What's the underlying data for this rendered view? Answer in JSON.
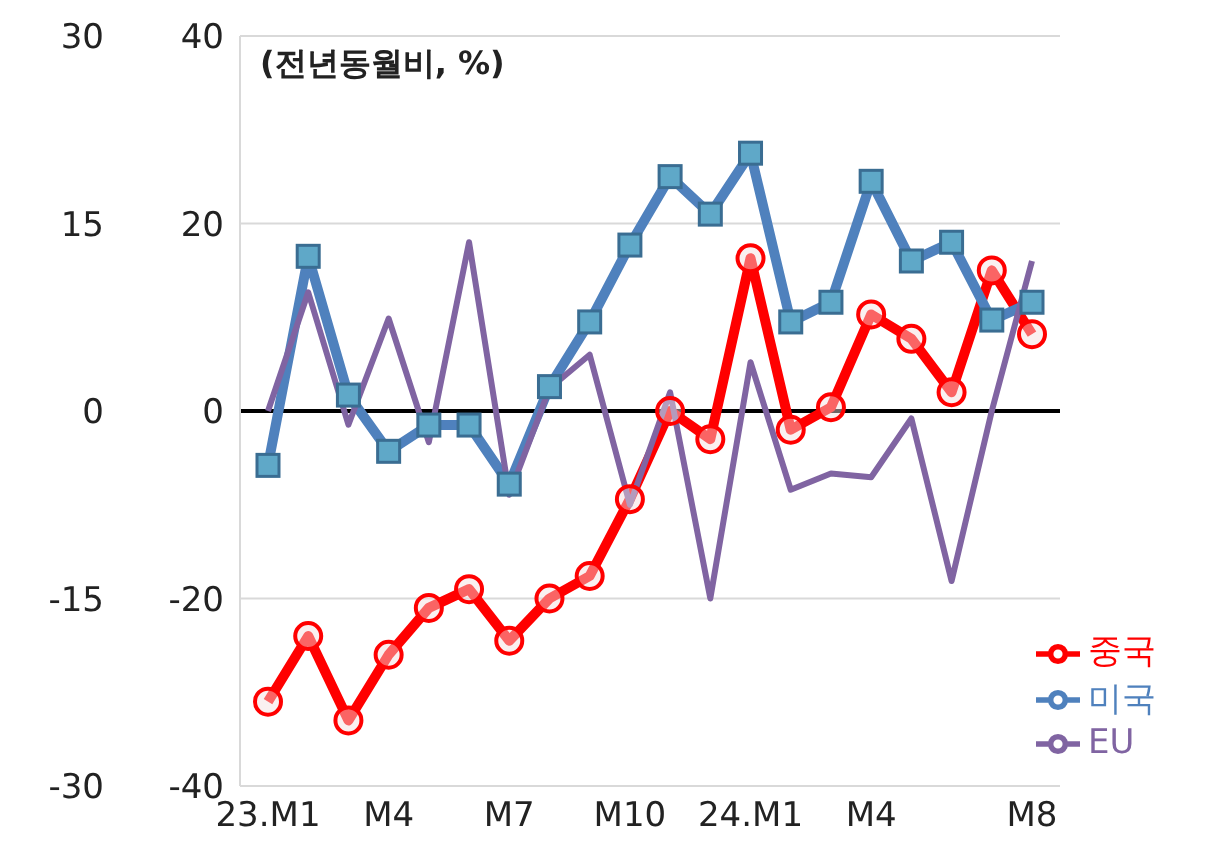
{
  "chart_data": {
    "type": "line",
    "annotations": [
      "(전년동월비, %)"
    ],
    "categories": [
      "23.M1",
      null,
      null,
      "M4",
      null,
      null,
      "M7",
      null,
      null,
      "M10",
      null,
      null,
      "24.M1",
      null,
      null,
      "M4",
      null,
      null,
      null,
      "M8"
    ],
    "series": [
      {
        "name": "중국",
        "color": "#ff0000",
        "marker": "circle",
        "values": [
          -31,
          -24,
          -33,
          -26,
          -21,
          -19,
          -24.5,
          -20,
          -17.6,
          -9.4,
          0,
          -3,
          16.3,
          -2,
          0.4,
          10.3,
          7.7,
          2,
          15,
          8.2
        ]
      },
      {
        "name": "미국",
        "color": "#4f81bd",
        "marker": "square",
        "values": [
          -5.8,
          16.5,
          1.7,
          -4.3,
          -1.5,
          -1.5,
          -7.8,
          2.6,
          9.5,
          17.7,
          25,
          21,
          27.5,
          9.5,
          11.6,
          24.5,
          16,
          18,
          9.7,
          11.6
        ]
      },
      {
        "name": "EU",
        "color": "#8064a2",
        "marker": "none",
        "axis": "y2",
        "values": [
          0,
          9.5,
          -1.1,
          7.4,
          -2.5,
          13.5,
          -6.7,
          1.8,
          4.5,
          -7.5,
          1.5,
          -15,
          3.9,
          -6.3,
          -5,
          -5.3,
          -0.6,
          -13.6,
          0,
          12
        ]
      }
    ],
    "ylim": [
      -40,
      40
    ],
    "yticks": [
      -40,
      -20,
      0,
      20,
      40
    ],
    "y2lim": [
      -30,
      30
    ],
    "y2ticks": [
      -30,
      -15,
      0,
      15,
      30
    ],
    "ref_lines": [
      {
        "axis": "y",
        "value": 0,
        "color": "#000000"
      }
    ],
    "grid": "y",
    "legend": "bottom right"
  }
}
